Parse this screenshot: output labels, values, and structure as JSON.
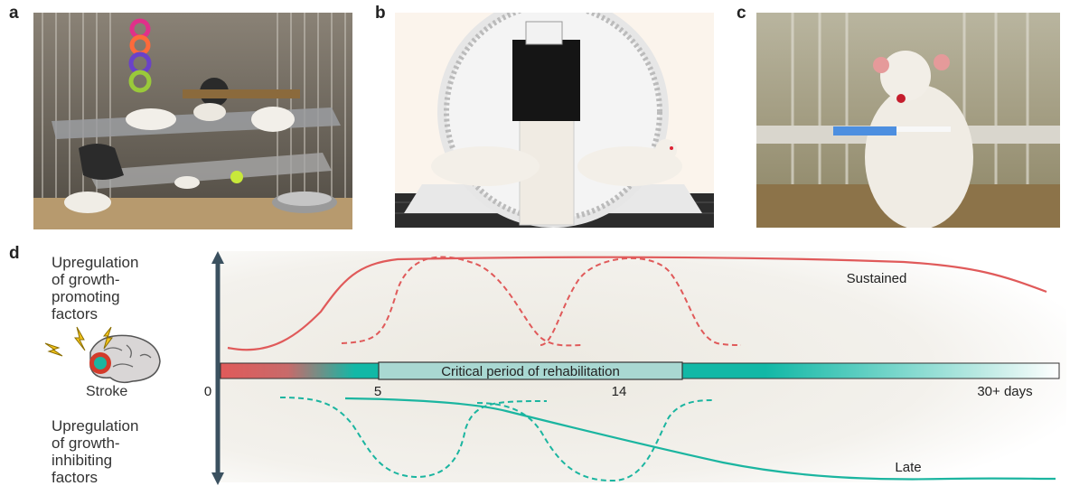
{
  "panels": {
    "a": {
      "letter": "a",
      "image": "enriched-environment-cage-photo"
    },
    "b": {
      "letter": "b",
      "image": "rat-running-wheel-photo"
    },
    "c": {
      "letter": "c",
      "image": "rat-skilled-reaching-photo"
    },
    "d": {
      "letter": "d"
    }
  },
  "diagram": {
    "top_label": [
      "Upregulation",
      "of growth-",
      "promoting",
      "factors"
    ],
    "bottom_label": [
      "Upregulation",
      "of growth-",
      "inhibiting",
      "factors"
    ],
    "stroke_label": "Stroke",
    "bar_label": "Critical period of rehabilitation",
    "ticks": [
      "0",
      "5",
      "14",
      "30+ days"
    ],
    "sustained_label": "Sustained",
    "late_label": "Late",
    "colors": {
      "promoting": "#e05a5a",
      "inhibiting": "#1bb5a0",
      "bar_teal": "#12b8a6",
      "bar_red": "#e05a5a"
    }
  }
}
